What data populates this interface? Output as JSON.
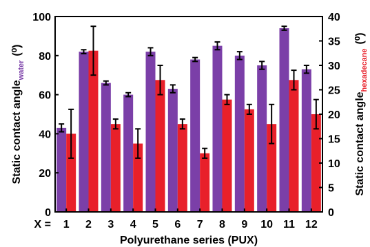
{
  "chart_data": {
    "type": "bar",
    "categories": [
      "1",
      "2",
      "3",
      "4",
      "5",
      "6",
      "7",
      "8",
      "9",
      "10",
      "11",
      "12"
    ],
    "category_prefix": "X =",
    "xlabel": "Polyurethane series (PUX)",
    "ylabel_left": {
      "main": "Static contact angle",
      "sub": "water",
      "unit": "(⁰)"
    },
    "ylabel_right": {
      "main": "Static contact angle",
      "sub": "hexadecane",
      "unit": "(⁰)"
    },
    "ylim_left": [
      0,
      100
    ],
    "ylim_right": [
      0,
      40
    ],
    "yticks_left": [
      "0",
      "20",
      "40",
      "60",
      "80",
      "100"
    ],
    "yticks_right": [
      "0",
      "5",
      "10",
      "15",
      "20",
      "25",
      "30",
      "35",
      "40"
    ],
    "series": [
      {
        "name": "water",
        "axis": "left",
        "color": "#7B3FA8",
        "values": [
          43,
          82,
          66,
          60,
          82,
          63,
          78,
          85,
          80,
          75,
          94,
          73
        ],
        "errors": [
          2,
          1,
          1,
          1,
          2,
          2,
          1,
          2,
          2,
          2,
          1,
          2
        ]
      },
      {
        "name": "hexadecane",
        "axis": "right",
        "color": "#E8202A",
        "values": [
          16,
          33,
          18,
          14,
          27,
          18,
          12,
          23,
          21,
          18,
          27,
          20
        ],
        "errors": [
          5,
          5,
          1,
          3,
          3,
          1,
          1,
          1,
          1,
          4,
          2,
          3
        ]
      }
    ],
    "grid": false
  }
}
